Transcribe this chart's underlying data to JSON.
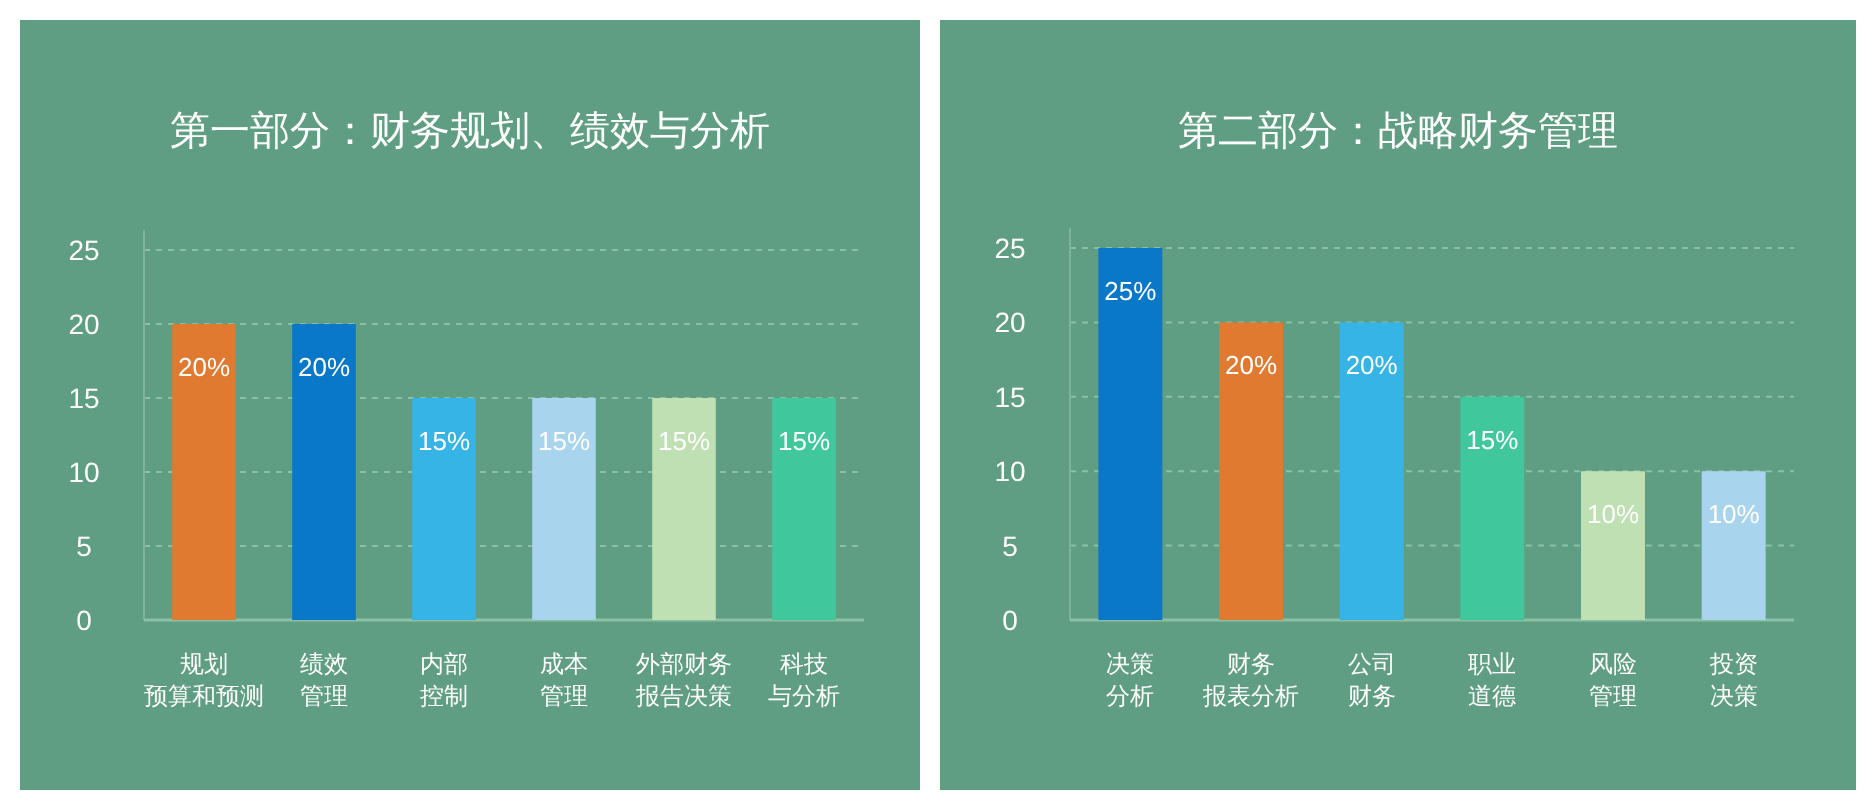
{
  "chart_data": [
    {
      "type": "bar",
      "title": "第一部分：财务规划、绩效与分析",
      "categories": [
        "规划预算和预测",
        "绩效管理",
        "内部控制",
        "成本管理",
        "外部财务报告决策",
        "科技与分析"
      ],
      "values": [
        20,
        20,
        15,
        15,
        15,
        15
      ],
      "colors": [
        "#e07a30",
        "#0a78c8",
        "#36b4e6",
        "#a8d4ee",
        "#bfe0b2",
        "#40c89c"
      ],
      "value_labels": [
        "20%",
        "20%",
        "15%",
        "15%",
        "15%",
        "15%"
      ],
      "ylim": [
        0,
        25
      ],
      "yticks": [
        0,
        5,
        10,
        15,
        20,
        25
      ],
      "grid": "y"
    },
    {
      "type": "bar",
      "title": "第二部分：战略财务管理",
      "categories": [
        "决策分析",
        "财务报表分析",
        "公司财务",
        "职业道德",
        "风险管理",
        "投资决策"
      ],
      "values": [
        25,
        20,
        20,
        15,
        10,
        10
      ],
      "colors": [
        "#0a78c8",
        "#e07a30",
        "#36b4e6",
        "#40c89c",
        "#bfe0b2",
        "#a8d4ee"
      ],
      "value_labels": [
        "25%",
        "20%",
        "20%",
        "15%",
        "10%",
        "10%"
      ],
      "ylim": [
        0,
        25
      ],
      "yticks": [
        0,
        5,
        10,
        15,
        20,
        25
      ],
      "grid": "y"
    }
  ]
}
